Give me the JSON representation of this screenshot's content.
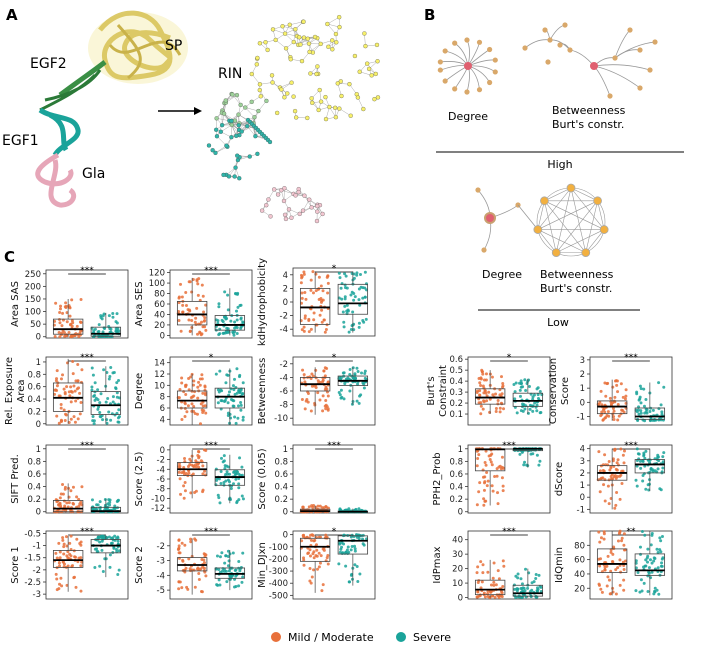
{
  "panels": [
    {
      "letter": "A",
      "labels": [
        "SP",
        "EGF2",
        "EGF1",
        "Gla",
        "RIN"
      ]
    },
    {
      "letter": "B",
      "star_caption": "Degree",
      "tree_caption": [
        "Betweenness",
        "Burt's constr."
      ],
      "high_label": "High",
      "low_caption_left": "Degree",
      "low_caption_right": [
        "Betweenness",
        "Burt's constr."
      ],
      "low_label": "Low"
    },
    {
      "letter": "C"
    }
  ],
  "colors": {
    "mild": "#e8703a",
    "severe": "#1aa39a",
    "sp": "#f0e27a",
    "egf2": "#3a8f45",
    "egf1": "#1aa39a",
    "gla": "#e6a6b8",
    "node_tan": "#d9a86a",
    "node_red": "#e06070",
    "node_orange": "#f2b040"
  },
  "legend": {
    "mild_label": "Mild / Moderate",
    "severe_label": "Severe"
  },
  "chart_data": {
    "type": "box",
    "groups": [
      "Mild / Moderate",
      "Severe"
    ],
    "plots": [
      {
        "ylabel": "Area SAS",
        "sig": "***",
        "ylim": [
          -5,
          265
        ],
        "ticks": [
          0,
          50,
          100,
          150,
          200,
          250
        ],
        "mild": [
          0,
          10,
          30,
          70,
          150
        ],
        "severe": [
          0,
          2,
          12,
          38,
          95
        ]
      },
      {
        "ylabel": "Area SES",
        "sig": "***",
        "ylim": [
          -5,
          125
        ],
        "ticks": [
          0,
          20,
          40,
          60,
          80,
          100,
          120
        ],
        "mild": [
          0,
          20,
          40,
          65,
          110
        ],
        "severe": [
          0,
          10,
          20,
          38,
          90
        ]
      },
      {
        "ylabel": "kdHydrophobicity",
        "sig": "*",
        "ylim": [
          -5,
          5
        ],
        "ticks": [
          -4,
          -2,
          0,
          2,
          4
        ],
        "mild": [
          -4.5,
          -3.3,
          -0.8,
          2.0,
          4.5
        ],
        "severe": [
          -4.5,
          -1.8,
          -0.2,
          2.6,
          4.5
        ]
      },
      {
        "ylabel": "Rel. Exposure Area",
        "sig": "***",
        "ylim": [
          -0.02,
          1.08
        ],
        "ticks": [
          0.0,
          0.2,
          0.4,
          0.6,
          0.8,
          1.0
        ],
        "mild": [
          0.0,
          0.2,
          0.42,
          0.66,
          1.05
        ],
        "severe": [
          0.0,
          0.15,
          0.3,
          0.52,
          0.93
        ]
      },
      {
        "ylabel": "Degree",
        "sig": "*",
        "ylim": [
          3,
          15
        ],
        "ticks": [
          4,
          6,
          8,
          10,
          12,
          14
        ],
        "mild": [
          3,
          6,
          7.3,
          9,
          12
        ],
        "severe": [
          3,
          6,
          8,
          9.5,
          13
        ]
      },
      {
        "ylabel": "Betweenness",
        "sig": "*",
        "ylim": [
          -11,
          -1
        ],
        "ticks": [
          -10,
          -8,
          -6,
          -4,
          -2
        ],
        "mild": [
          -9.5,
          -6,
          -5,
          -4,
          -2.5
        ],
        "severe": [
          -8,
          -5.2,
          -4.5,
          -3.8,
          -2.5
        ]
      },
      {
        "ylabel": "Burt's Constraint",
        "sig": "*",
        "ylim": [
          0.0,
          0.62
        ],
        "ticks": [
          0.1,
          0.2,
          0.3,
          0.4,
          0.5,
          0.6
        ],
        "mild": [
          0.1,
          0.19,
          0.25,
          0.33,
          0.5
        ],
        "severe": [
          0.1,
          0.17,
          0.22,
          0.29,
          0.42
        ]
      },
      {
        "ylabel": "Conservation Score",
        "sig": "***",
        "ylim": [
          -1.6,
          3.2
        ],
        "ticks": [
          -1,
          0,
          1,
          2,
          3
        ],
        "mild": [
          -1.3,
          -0.8,
          -0.3,
          0.1,
          1.6
        ],
        "severe": [
          -1.3,
          -1.2,
          -1.0,
          -0.4,
          1.4
        ]
      },
      {
        "ylabel": "SIFT Pred.",
        "sig": "***",
        "ylim": [
          -0.02,
          1.06
        ],
        "ticks": [
          0.0,
          0.2,
          0.4,
          0.6,
          0.8,
          1.0
        ],
        "mild": [
          0,
          0.0,
          0.05,
          0.18,
          0.45
        ],
        "severe": [
          0,
          0.0,
          0.01,
          0.07,
          0.2
        ]
      },
      {
        "ylabel": "Score (2.5)",
        "sig": "***",
        "ylim": [
          -13,
          1
        ],
        "ticks": [
          -12,
          -10,
          -8,
          -6,
          -4,
          -2,
          0
        ],
        "mild": [
          -10,
          -5.3,
          -4,
          -2.6,
          0
        ],
        "severe": [
          -11,
          -7.3,
          -5.6,
          -4.1,
          -1
        ]
      },
      {
        "ylabel": "Score (0.05)",
        "sig": "***",
        "ylim": [
          -0.02,
          1.06
        ],
        "ticks": [
          0.0,
          0.2,
          0.4,
          0.6,
          0.8,
          1.0
        ],
        "mild": [
          0,
          0.0,
          0.01,
          0.04,
          0.1
        ],
        "severe": [
          0,
          0.0,
          0.0,
          0.01,
          0.05
        ]
      },
      {
        "ylabel": "PPH2_Prob",
        "sig": "***",
        "ylim": [
          -0.02,
          1.06
        ],
        "ticks": [
          0.0,
          0.2,
          0.4,
          0.6,
          0.8,
          1.0
        ],
        "mild": [
          0.1,
          0.65,
          0.99,
          1.0,
          1.0
        ],
        "severe": [
          0.7,
          0.97,
          1.0,
          1.0,
          1.0
        ]
      },
      {
        "ylabel": "dScore",
        "sig": "***",
        "ylim": [
          -1.3,
          4.3
        ],
        "ticks": [
          -1,
          0,
          1,
          2,
          3,
          4
        ],
        "mild": [
          -1,
          1.4,
          2.0,
          2.6,
          4
        ],
        "severe": [
          0.5,
          2.0,
          2.7,
          3.1,
          4
        ]
      },
      {
        "ylabel": "Score 1",
        "sig": "***",
        "ylim": [
          -3.2,
          -0.4
        ],
        "ticks": [
          -3.0,
          -2.5,
          -2.0,
          -1.5,
          -1.0,
          -0.5
        ],
        "mild": [
          -2.9,
          -1.9,
          -1.6,
          -1.2,
          -0.6
        ],
        "severe": [
          -2.3,
          -1.3,
          -1.0,
          -0.75,
          -0.6
        ]
      },
      {
        "ylabel": "Score 2",
        "sig": "***",
        "ylim": [
          -5.6,
          -1.0
        ],
        "ticks": [
          -5,
          -4,
          -3,
          -2
        ],
        "mild": [
          -5.3,
          -3.7,
          -3.3,
          -2.8,
          -1.5
        ],
        "severe": [
          -5.0,
          -4.2,
          -3.9,
          -3.5,
          -2.3
        ]
      },
      {
        "ylabel": "Min_DJxn",
        "sig": "*",
        "ylim": [
          -530,
          30
        ],
        "ticks": [
          0,
          -100,
          -200,
          -300,
          -400,
          -500
        ],
        "mild": [
          -480,
          -220,
          -100,
          -30,
          0
        ],
        "severe": [
          -420,
          -160,
          -50,
          -10,
          0
        ]
      },
      {
        "ylabel": "IdPmax",
        "sig": "***",
        "ylim": [
          -1,
          46
        ],
        "ticks": [
          0,
          10,
          20,
          30,
          40
        ],
        "mild": [
          0,
          2,
          5.5,
          12,
          26
        ],
        "severe": [
          0,
          1,
          3,
          8.5,
          20
        ]
      },
      {
        "ylabel": "IdQmin",
        "sig": "**",
        "ylim": [
          5,
          100
        ],
        "ticks": [
          20,
          40,
          60,
          80
        ],
        "mild": [
          10,
          42,
          54,
          75,
          100
        ],
        "severe": [
          10,
          38,
          45,
          68,
          100
        ]
      }
    ]
  }
}
